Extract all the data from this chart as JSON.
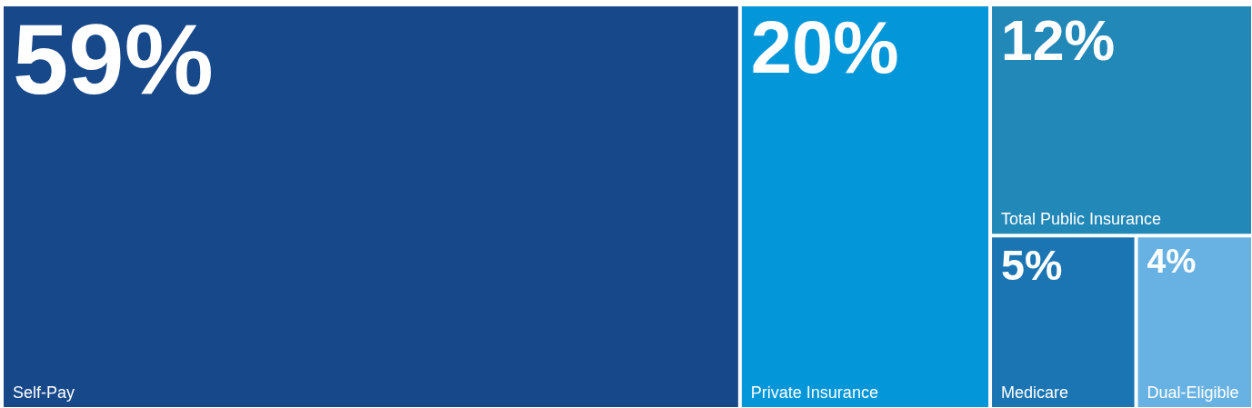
{
  "chart_data": {
    "type": "other",
    "categories": [
      "Self-Pay",
      "Private Insurance",
      "Total Public Insurance",
      "Medicare",
      "Dual-Eligible"
    ],
    "values": [
      59,
      20,
      12,
      5,
      4
    ],
    "value_labels": [
      "59%",
      "20%",
      "12%",
      "5%",
      "4%"
    ],
    "colors": [
      "#17488a",
      "#0396d9",
      "#2288b8",
      "#1b75b3",
      "#67b2e2"
    ]
  }
}
